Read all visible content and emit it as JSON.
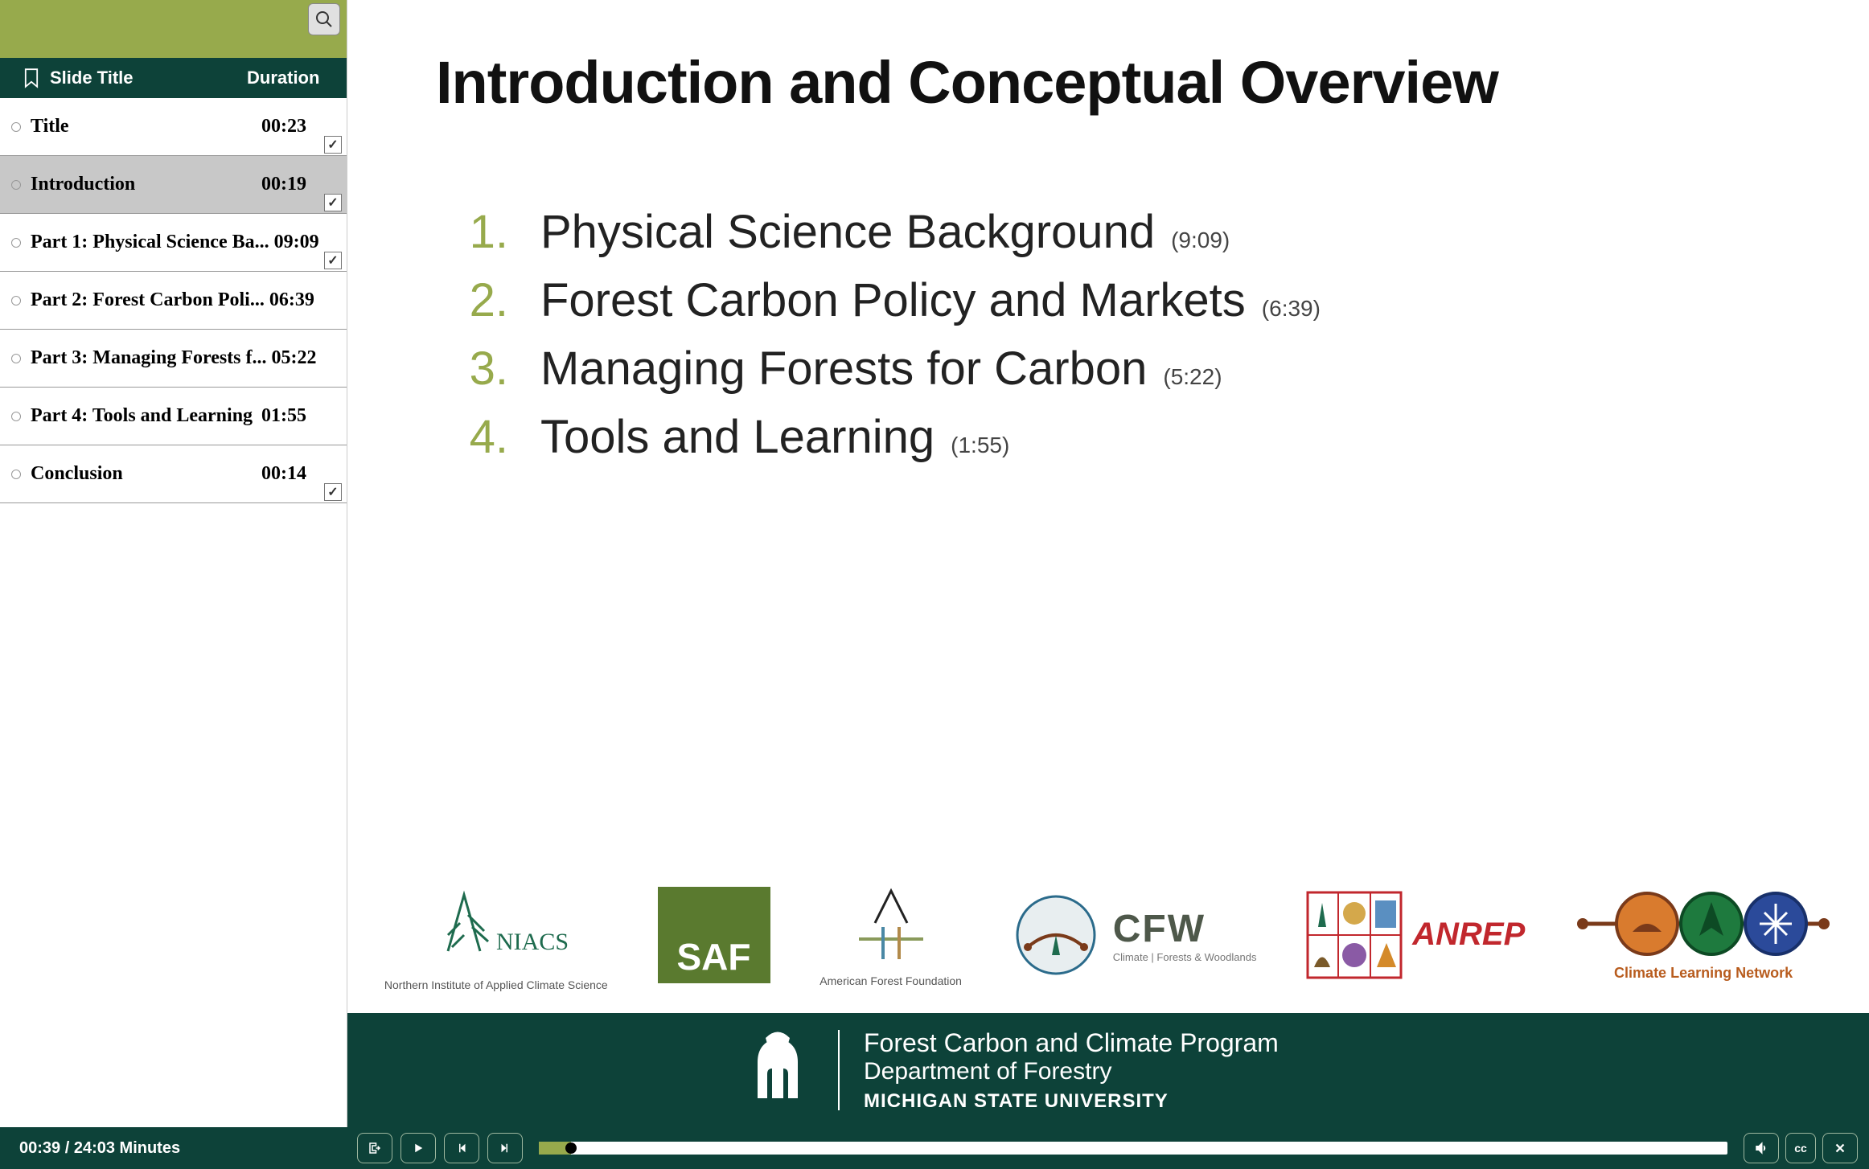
{
  "colors": {
    "olive": "#97aa4c",
    "dark_green": "#0d4239",
    "white": "#ffffff",
    "grey_active": "#c8c8c8",
    "text_dark": "#111111",
    "anrep_red": "#c1272d",
    "cln_orange": "#b85c1e"
  },
  "sidebar": {
    "header_title": "Slide Title",
    "header_duration": "Duration",
    "slides": [
      {
        "title": "Title",
        "duration": "00:23",
        "active": false,
        "checked": true
      },
      {
        "title": "Introduction",
        "duration": "00:19",
        "active": true,
        "checked": true
      },
      {
        "title": "Part 1: Physical Science Ba...",
        "duration": "09:09",
        "active": false,
        "checked": true
      },
      {
        "title": "Part 2: Forest Carbon Poli...",
        "duration": "06:39",
        "active": false,
        "checked": false
      },
      {
        "title": "Part 3: Managing Forests f...",
        "duration": "05:22",
        "active": false,
        "checked": false
      },
      {
        "title": "Part 4: Tools and Learning",
        "duration": "01:55",
        "active": false,
        "checked": false
      },
      {
        "title": "Conclusion",
        "duration": "00:14",
        "active": false,
        "checked": true
      }
    ]
  },
  "slide": {
    "title": "Introduction and Conceptual Overview",
    "parts": [
      {
        "num": "1.",
        "text": "Physical Science Background",
        "time": "(9:09)"
      },
      {
        "num": "2.",
        "text": "Forest Carbon Policy and Markets",
        "time": "(6:39)"
      },
      {
        "num": "3.",
        "text": "Managing Forests for Carbon",
        "time": "(5:22)"
      },
      {
        "num": "4.",
        "text": "Tools and Learning",
        "time": "(1:55)"
      }
    ]
  },
  "logos": {
    "niacs": {
      "name": "NIACS",
      "sub": "Northern Institute of\nApplied Climate Science"
    },
    "saf": {
      "name": "SAF"
    },
    "aff": {
      "name": "A",
      "sub": "American Forest Foundation"
    },
    "cfw": {
      "name": "CFW",
      "sub": "Climate | Forests & Woodlands"
    },
    "anrep": {
      "name": "ANREP"
    },
    "cln": {
      "name": "Climate Learning Network"
    }
  },
  "banner": {
    "line1": "Forest Carbon and Climate Program",
    "line2": "Department of Forestry",
    "line3": "MICHIGAN STATE UNIVERSITY"
  },
  "player": {
    "time_label": "00:39 / 24:03 Minutes",
    "progress_percent": 2.7,
    "cc_label": "cc"
  }
}
